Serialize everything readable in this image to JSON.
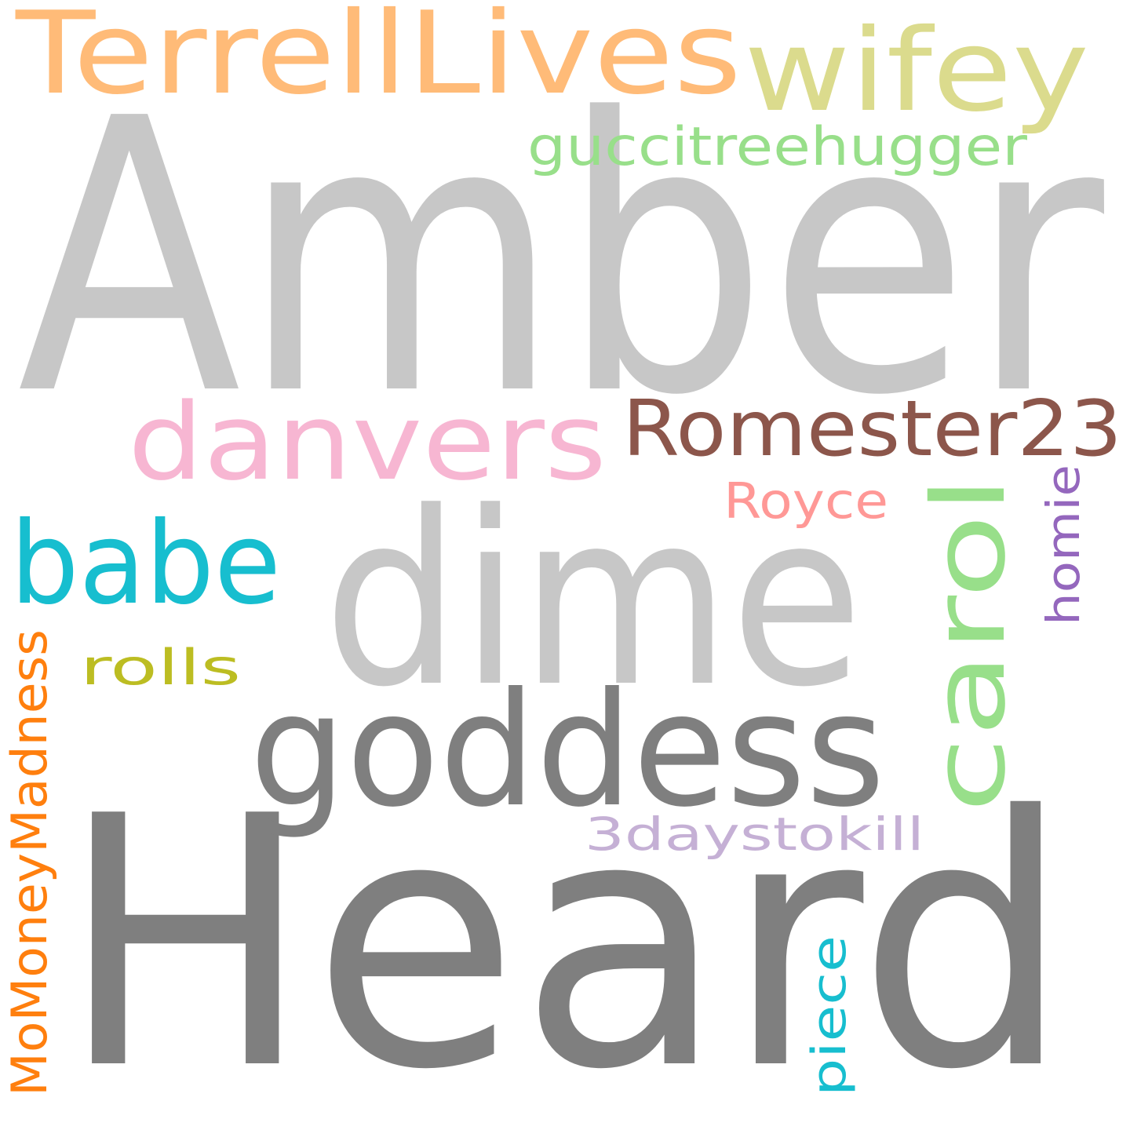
{
  "background_color": "#ffffff",
  "words": [
    {
      "id": "amber",
      "text": "Amber",
      "color": "#c7c7c7"
    },
    {
      "id": "heard",
      "text": "Heard",
      "color": "#7f7f7f"
    },
    {
      "id": "dime",
      "text": "dime",
      "color": "#c7c7c7"
    },
    {
      "id": "goddess",
      "text": "goddess",
      "color": "#7f7f7f"
    },
    {
      "id": "terrelllives",
      "text": "TerrellLives",
      "color": "#ffbb78"
    },
    {
      "id": "wifey",
      "text": "wifey",
      "color": "#dbdb8d"
    },
    {
      "id": "guccitreehugger",
      "text": "guccitreehugger",
      "color": "#98df8a"
    },
    {
      "id": "danvers",
      "text": "danvers",
      "color": "#f7b6d2"
    },
    {
      "id": "romester23",
      "text": "Romester23",
      "color": "#8c564b"
    },
    {
      "id": "babe",
      "text": "babe",
      "color": "#17becf"
    },
    {
      "id": "carol",
      "text": "carol",
      "color": "#98df8a"
    },
    {
      "id": "royce",
      "text": "Royce",
      "color": "#ff9896"
    },
    {
      "id": "homie",
      "text": "homie",
      "color": "#9467bd"
    },
    {
      "id": "rolls",
      "text": "rolls",
      "color": "#bcbd22"
    },
    {
      "id": "momoneymadness",
      "text": "MoMoneyMadness",
      "color": "#ff7f0e"
    },
    {
      "id": "3daystokill",
      "text": "3daystokill",
      "color": "#c5b0d5"
    },
    {
      "id": "piece",
      "text": "piece",
      "color": "#17becf"
    }
  ]
}
